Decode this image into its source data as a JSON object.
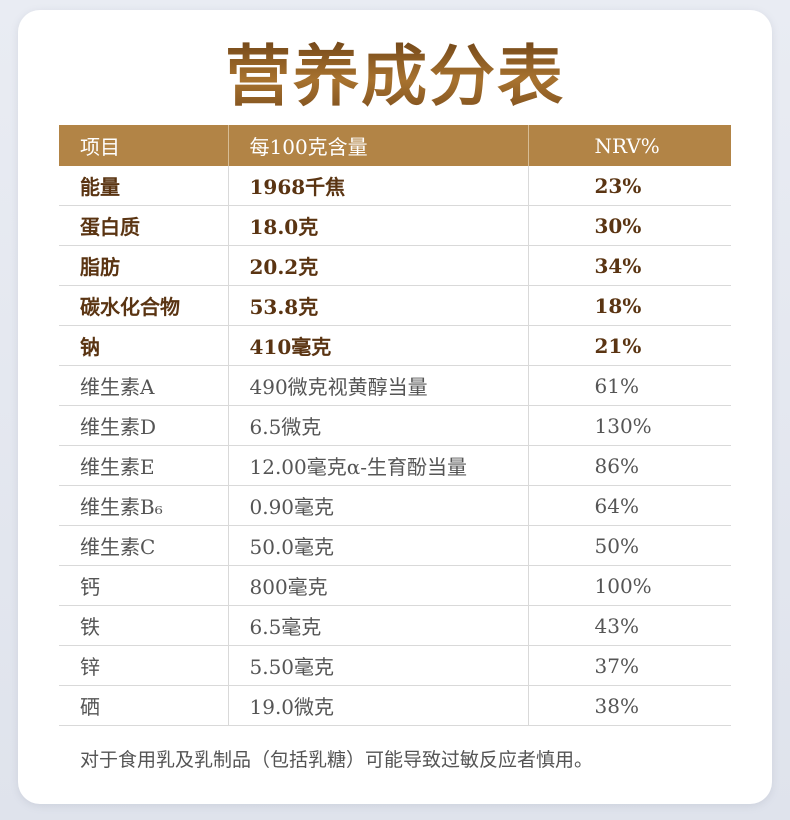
{
  "title": "营养成分表",
  "table": {
    "headers": [
      "项目",
      "每100克含量",
      "NRV%"
    ],
    "rows": [
      {
        "name": "能量",
        "amount": "1968千焦",
        "nrv": "23%",
        "bold": true
      },
      {
        "name": "蛋白质",
        "amount": "18.0克",
        "nrv": "30%",
        "bold": true
      },
      {
        "name": "脂肪",
        "amount": "20.2克",
        "nrv": "34%",
        "bold": true
      },
      {
        "name": "碳水化合物",
        "amount": "53.8克",
        "nrv": "18%",
        "bold": true
      },
      {
        "name": "钠",
        "amount": "410毫克",
        "nrv": "21%",
        "bold": true
      },
      {
        "name": "维生素A",
        "amount": "490微克视黄醇当量",
        "nrv": "61%",
        "bold": false
      },
      {
        "name": "维生素D",
        "amount": "6.5微克",
        "nrv": "130%",
        "bold": false
      },
      {
        "name": "维生素E",
        "amount": "12.00毫克α-生育酚当量",
        "nrv": "86%",
        "bold": false
      },
      {
        "name": "维生素B₆",
        "amount": "0.90毫克",
        "nrv": "64%",
        "bold": false
      },
      {
        "name": "维生素C",
        "amount": "50.0毫克",
        "nrv": "50%",
        "bold": false
      },
      {
        "name": "钙",
        "amount": "800毫克",
        "nrv": "100%",
        "bold": false
      },
      {
        "name": "铁",
        "amount": "6.5毫克",
        "nrv": "43%",
        "bold": false
      },
      {
        "name": "锌",
        "amount": "5.50毫克",
        "nrv": "37%",
        "bold": false
      },
      {
        "name": "硒",
        "amount": "19.0微克",
        "nrv": "38%",
        "bold": false
      }
    ]
  },
  "note": "对于食用乳及乳制品（包括乳糖）可能导致过敏反应者慎用。",
  "colors": {
    "header_bg": "#b28446",
    "title_gold": "#8a5a22",
    "bold_text": "#5a3412",
    "body_text": "#555555"
  }
}
